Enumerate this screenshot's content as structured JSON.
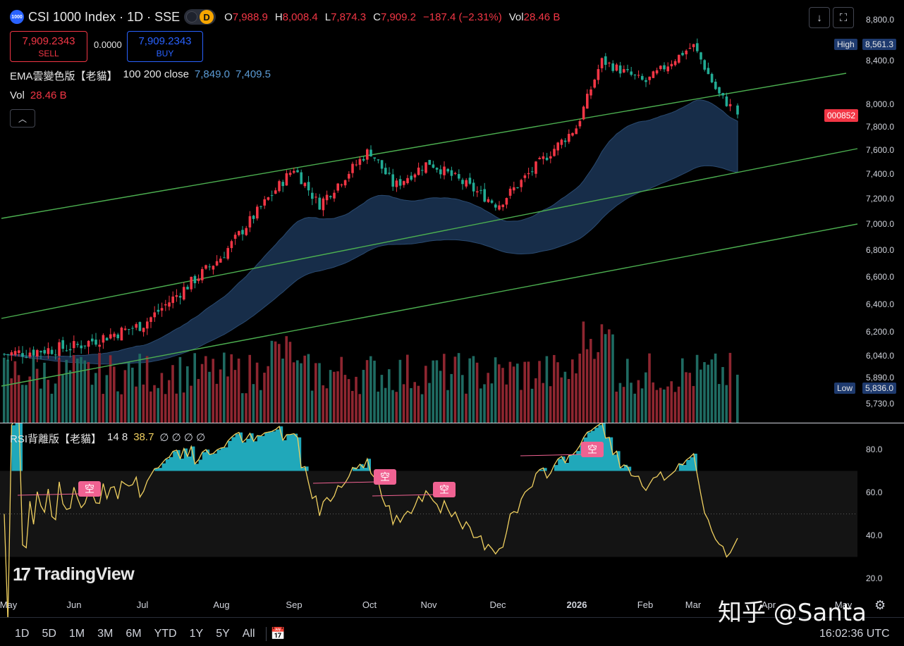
{
  "header": {
    "logo_text": "1000",
    "title": "CSI 1000 Index · 1D · SSE",
    "mode_badge": "D",
    "ohlc": [
      {
        "k": "O",
        "v": "7,988.9"
      },
      {
        "k": "H",
        "v": "8,008.4"
      },
      {
        "k": "L",
        "v": "7,874.3"
      },
      {
        "k": "C",
        "v": "7,909.2"
      },
      {
        "k": "",
        "v": "−187.4 (−2.31%)"
      },
      {
        "k": "Vol",
        "v": "28.46 B"
      }
    ]
  },
  "trade": {
    "sell_price": "7,909.2343",
    "sell_label": "SELL",
    "spread": "0.0000",
    "buy_price": "7,909.2343",
    "buy_label": "BUY"
  },
  "legends": {
    "ema_name": "EMA雲變色版【老貓】",
    "ema_params": "100 200 close",
    "ema_val1": "7,849.0",
    "ema_val2": "7,409.5",
    "vol_name": "Vol",
    "vol_val": "28.46 B",
    "rsi_name": "RSI背離版【老貓】",
    "rsi_params": "14 8",
    "rsi_val": "38.7",
    "rsi_zeros": "∅ ∅ ∅ ∅"
  },
  "price_tags": {
    "high_label": "High",
    "high_value": "8,561.3",
    "low_label": "Low",
    "low_value": "5,836.0",
    "code": "000852"
  },
  "icons": {
    "collapse": "chevron-up-icon",
    "download": "download-icon",
    "fullscreen": "fullscreen-icon",
    "goto_date": "calendar-goto-icon",
    "settings": "gear-icon"
  },
  "watermark": {
    "brand": "TradingView"
  },
  "overlay_text": "知乎 @Santa",
  "bottom": {
    "ranges": [
      "1D",
      "5D",
      "1M",
      "3M",
      "6M",
      "YTD",
      "1Y",
      "5Y",
      "All"
    ],
    "time": "16:02:36 UTC"
  },
  "colors": {
    "up": "#f23645",
    "down": "#22ab94",
    "ema_cloud": "#1b3556",
    "channel": "#4caf50",
    "rsi_line": "#f0d060",
    "rsi_fill": "#26c6da",
    "divergence": "#f06292",
    "background": "#000000"
  },
  "chart_data": [
    {
      "type": "candlestick",
      "title": "CSI 1000 Index · 1D · SSE",
      "y_ticks": [
        5730,
        5890,
        6040,
        6200,
        6400,
        6600,
        6800,
        7000,
        7200,
        7400,
        7600,
        7800,
        8000,
        8400,
        8800
      ],
      "y_tick_labels": [
        "5,730.0",
        "5,890.0",
        "6,040.0",
        "6,200.0",
        "6,400.0",
        "6,600.0",
        "6,800.0",
        "7,000.0",
        "7,200.0",
        "7,400.0",
        "7,600.0",
        "7,800.0",
        "8,000.0",
        "8,400.0",
        "8,800.0"
      ],
      "x_labels": [
        "May",
        "Jun",
        "Jul",
        "Aug",
        "Sep",
        "Oct",
        "Nov",
        "Dec",
        "2026",
        "Feb",
        "Mar",
        "Apr",
        "May"
      ],
      "high": 8561.3,
      "low": 5836.0,
      "last_close": 7909.2,
      "close_path": [
        [
          "May",
          6050
        ],
        [
          "Jun",
          6100
        ],
        [
          "Jul",
          6250
        ],
        [
          "Aug",
          6750
        ],
        [
          "Sep",
          7450
        ],
        [
          "Sep",
          7150
        ],
        [
          "Oct",
          7600
        ],
        [
          "Oct",
          7300
        ],
        [
          "Nov",
          7500
        ],
        [
          "Dec",
          7150
        ],
        [
          "Dec",
          7350
        ],
        [
          "2026",
          7800
        ],
        [
          "2026",
          8400
        ],
        [
          "Feb",
          8200
        ],
        [
          "Mar",
          8550
        ],
        [
          "Mar",
          8100
        ],
        [
          "Mar",
          7909.2
        ]
      ],
      "indicators": {
        "ema_fast": 7849.0,
        "ema_slow": 7409.5,
        "volume_last": "28.46 B"
      }
    },
    {
      "type": "line",
      "title": "RSI背離版【老貓】",
      "y_ticks": [
        20,
        40,
        60,
        80
      ],
      "y_tick_labels": [
        "20.0",
        "40.0",
        "60.0",
        "80.0"
      ],
      "overbought": 70,
      "oversold": 30,
      "midline": 50,
      "last_value": 38.7,
      "divergence_marks": [
        {
          "label": "空",
          "month": "Jun"
        },
        {
          "label": "空",
          "month": "Oct"
        },
        {
          "label": "空",
          "month": "Nov"
        },
        {
          "label": "空",
          "month": "2026"
        }
      ]
    }
  ]
}
